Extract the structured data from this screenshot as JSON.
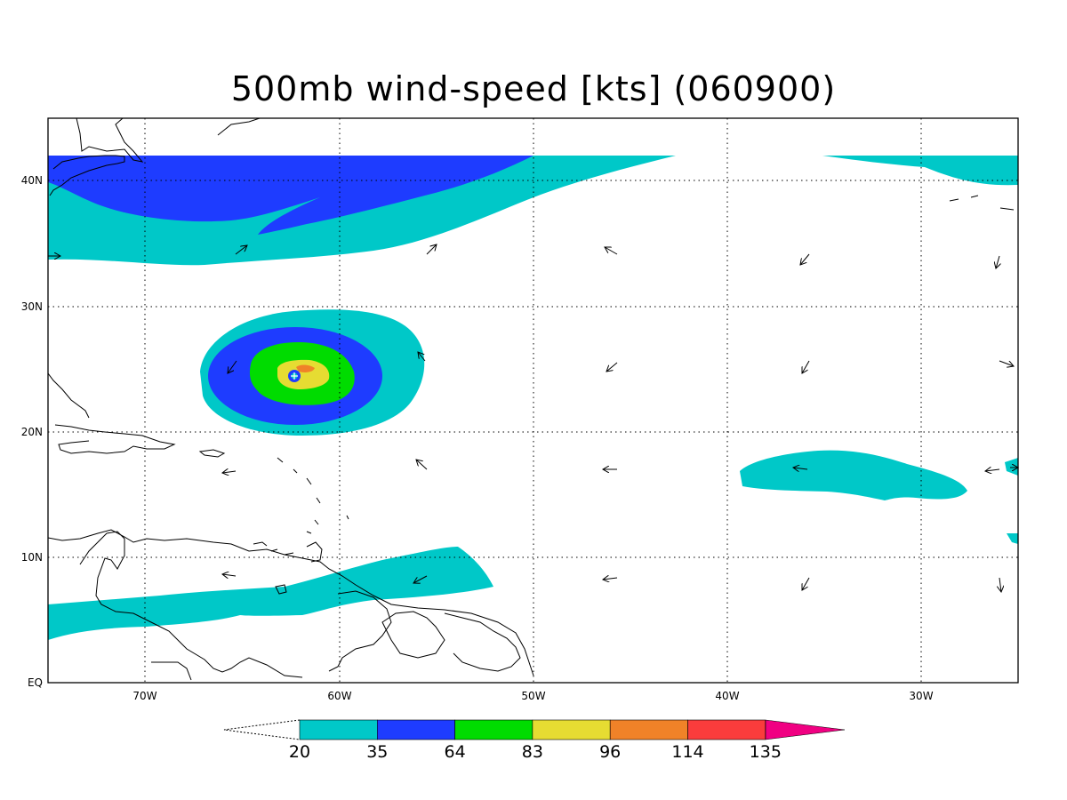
{
  "title": "500mb wind-speed [kts] (060900)",
  "map": {
    "lon_range": [
      -75,
      -25
    ],
    "lat_range": [
      0,
      45
    ],
    "lat_ticks": [
      {
        "value": 0,
        "label": "EQ"
      },
      {
        "value": 10,
        "label": "10N"
      },
      {
        "value": 20,
        "label": "20N"
      },
      {
        "value": 30,
        "label": "30N"
      },
      {
        "value": 40,
        "label": "40N"
      }
    ],
    "lon_ticks": [
      {
        "value": -70,
        "label": "70W"
      },
      {
        "value": -60,
        "label": "60W"
      },
      {
        "value": -50,
        "label": "50W"
      },
      {
        "value": -40,
        "label": "40W"
      },
      {
        "value": -30,
        "label": "30W"
      }
    ],
    "grid": "dotted"
  },
  "colorbar": {
    "levels": [
      "20",
      "35",
      "64",
      "83",
      "96",
      "114",
      "135"
    ],
    "colors": [
      "#00c8c8",
      "#1e3cff",
      "#00dc00",
      "#e6dc32",
      "#f08228",
      "#fa3c3c",
      "#f00082"
    ]
  }
}
